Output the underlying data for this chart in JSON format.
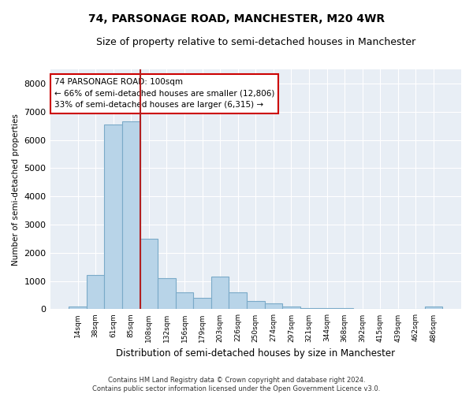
{
  "title": "74, PARSONAGE ROAD, MANCHESTER, M20 4WR",
  "subtitle": "Size of property relative to semi-detached houses in Manchester",
  "xlabel": "Distribution of semi-detached houses by size in Manchester",
  "ylabel": "Number of semi-detached properties",
  "categories": [
    "14sqm",
    "38sqm",
    "61sqm",
    "85sqm",
    "108sqm",
    "132sqm",
    "156sqm",
    "179sqm",
    "203sqm",
    "226sqm",
    "250sqm",
    "274sqm",
    "297sqm",
    "321sqm",
    "344sqm",
    "368sqm",
    "392sqm",
    "415sqm",
    "439sqm",
    "462sqm",
    "486sqm"
  ],
  "values": [
    100,
    1200,
    6550,
    6650,
    2500,
    1100,
    600,
    400,
    1150,
    600,
    300,
    200,
    100,
    50,
    50,
    50,
    25,
    25,
    10,
    10,
    100
  ],
  "bar_color": "#b8d4e8",
  "bar_edgecolor": "#7aaac8",
  "vline_color": "#b22020",
  "vline_index": 3.5,
  "annotation_title": "74 PARSONAGE ROAD: 100sqm",
  "annotation_line1": "← 66% of semi-detached houses are smaller (12,806)",
  "annotation_line2": "33% of semi-detached houses are larger (6,315) →",
  "ylim": [
    0,
    8500
  ],
  "yticks": [
    0,
    1000,
    2000,
    3000,
    4000,
    5000,
    6000,
    7000,
    8000
  ],
  "footer_line1": "Contains HM Land Registry data © Crown copyright and database right 2024.",
  "footer_line2": "Contains public sector information licensed under the Open Government Licence v3.0.",
  "bg_color": "#e8eef5",
  "title_fontsize": 10,
  "subtitle_fontsize": 9
}
